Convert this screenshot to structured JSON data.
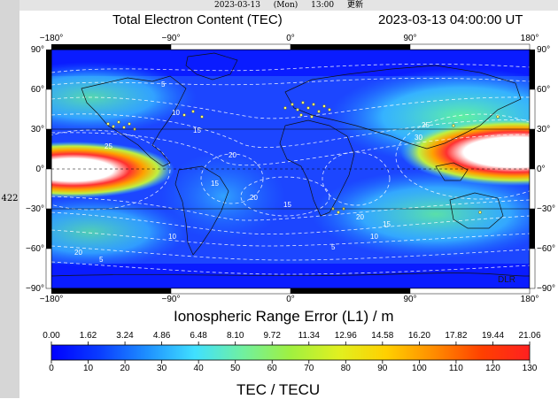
{
  "left_strip_label": "422",
  "top_bar": {
    "date": "2023-03-13",
    "day": "(Mon)",
    "time": "13:00",
    "refresh": "更新"
  },
  "title": "Total Electron Content (TEC)",
  "timestamp": "2023-03-13  04:00:00 UT",
  "longitude_ticks": [
    "−180°",
    "−90°",
    "0°",
    "90°",
    "180°"
  ],
  "latitude_ticks_left": [
    "90°",
    "60°",
    "30°",
    "0°",
    "−30°",
    "−60°",
    "−90°"
  ],
  "latitude_ticks_right": [
    "90°",
    "60°",
    "30°",
    "0°",
    "−30°",
    "−60°",
    "−90°"
  ],
  "contour_labels": [
    "5",
    "10",
    "15",
    "20",
    "25",
    "30",
    "20",
    "15",
    "10",
    "5",
    "20",
    "15",
    "25",
    "10",
    "5",
    "15",
    "20"
  ],
  "credit": "DLR",
  "colorbar": {
    "title": "Ionospheric Range Error (L1) / m",
    "range_error_labels": [
      "0.00",
      "1.62",
      "3.24",
      "4.86",
      "6.48",
      "8.10",
      "9.72",
      "11.34",
      "12.96",
      "14.58",
      "16.20",
      "17.82",
      "19.44",
      "21.06"
    ],
    "tec_labels": [
      "0",
      "10",
      "20",
      "30",
      "40",
      "50",
      "60",
      "70",
      "80",
      "90",
      "100",
      "110",
      "120",
      "130"
    ],
    "unit_label": "TEC / TECU",
    "tec_min": 0,
    "tec_max": 130,
    "colors": [
      "#0000ff",
      "#0a3cff",
      "#1e90ff",
      "#40e0ff",
      "#70f0a0",
      "#a0f040",
      "#e0f020",
      "#ffd000",
      "#ff8c00",
      "#ff4000",
      "#ff2020"
    ]
  },
  "map": {
    "lon_range": [
      -180,
      180
    ],
    "lat_range": [
      -90,
      90
    ],
    "background_tec_level": 15,
    "features": [
      {
        "name": "equatorial-anomaly-east-north",
        "lon": 150,
        "lat": 15,
        "tec": 130
      },
      {
        "name": "equatorial-anomaly-west-south",
        "lon": -160,
        "lat": 0,
        "tec": 130
      },
      {
        "name": "equatorial-anomaly-east-south",
        "lon": 130,
        "lat": -15,
        "tec": 60
      }
    ]
  }
}
